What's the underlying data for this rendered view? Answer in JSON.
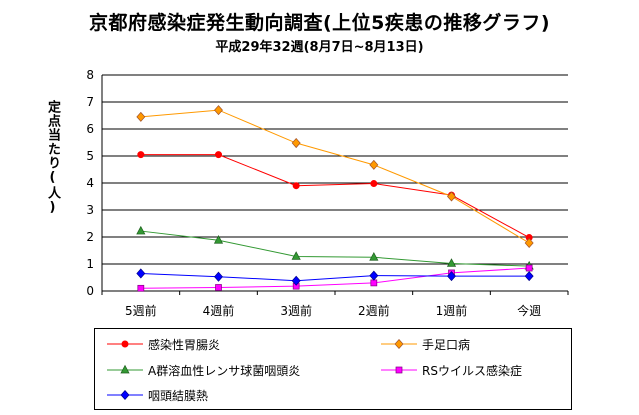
{
  "title": "京都府感染症発生動向調査(上位5疾患の推移グラフ)",
  "subtitle": "平成29年32週(8月7日~8月13日)",
  "chart_data": {
    "type": "line",
    "title": "京都府感染症発生動向調査(上位5疾患の推移グラフ)",
    "subtitle": "平成29年32週(8月7日~8月13日)",
    "ylabel": "定点当たり(人)",
    "xlabel": "",
    "categories": [
      "5週前",
      "4週前",
      "3週前",
      "2週前",
      "1週前",
      "今週"
    ],
    "ylim": [
      0,
      8
    ],
    "yticks": [
      "0",
      "1",
      "2",
      "3",
      "4",
      "5",
      "6",
      "7",
      "8"
    ],
    "grid": "horizontal",
    "legend": "bottom",
    "series": [
      {
        "name": "感染性胃腸炎",
        "color": "#ff0000",
        "marker": "circle",
        "values": [
          5.05,
          5.05,
          3.9,
          3.98,
          3.55,
          1.98
        ]
      },
      {
        "name": "手足口病",
        "color": "#ff9900",
        "marker": "diamond",
        "values": [
          6.45,
          6.7,
          5.48,
          4.67,
          3.5,
          1.78
        ]
      },
      {
        "name": "A群溶血性レンサ球菌咽頭炎",
        "color": "#339933",
        "marker": "triangle",
        "values": [
          2.22,
          1.88,
          1.28,
          1.25,
          1.02,
          0.92
        ]
      },
      {
        "name": "RSウイルス感染症",
        "color": "#ff00ff",
        "marker": "square",
        "values": [
          0.1,
          0.13,
          0.18,
          0.3,
          0.67,
          0.85
        ]
      },
      {
        "name": "咽頭結膜熱",
        "color": "#0000ff",
        "marker": "diamond",
        "values": [
          0.65,
          0.53,
          0.38,
          0.57,
          0.55,
          0.55
        ]
      }
    ]
  }
}
